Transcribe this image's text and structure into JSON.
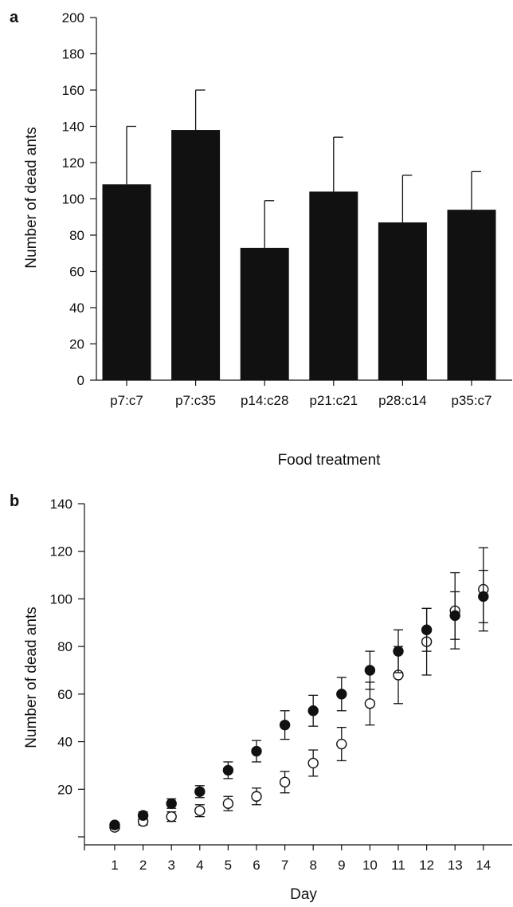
{
  "chart_data": [
    {
      "panel": "a",
      "type": "bar",
      "xlabel": "Food treatment",
      "ylabel": "Number of dead ants",
      "categories": [
        "p7:c7",
        "p7:c35",
        "p14:c28",
        "p21:c21",
        "p28:c14",
        "p35:c7"
      ],
      "values": [
        108,
        138,
        73,
        104,
        87,
        94
      ],
      "errors": [
        32,
        22,
        26,
        30,
        26,
        21
      ],
      "ylim": [
        0,
        200
      ],
      "yticks": [
        0,
        20,
        40,
        60,
        80,
        100,
        120,
        140,
        160,
        180,
        200
      ],
      "bar_color": "#111111",
      "grid": false
    },
    {
      "panel": "b",
      "type": "scatter",
      "xlabel": "Day",
      "ylabel": "Number of dead ants",
      "x": [
        1,
        2,
        3,
        4,
        5,
        6,
        7,
        8,
        9,
        10,
        11,
        12,
        13,
        14
      ],
      "xticks": [
        1,
        2,
        3,
        4,
        5,
        6,
        7,
        8,
        9,
        10,
        11,
        12,
        13,
        14
      ],
      "ylim": [
        0,
        140
      ],
      "yticks": [
        20,
        40,
        60,
        80,
        100,
        120,
        140
      ],
      "grid": false,
      "series": [
        {
          "marker": "filled-circle",
          "color": "#111111",
          "values": [
            5,
            9,
            14,
            19,
            28,
            36,
            47,
            53,
            60,
            70,
            78,
            87,
            93,
            101
          ],
          "errors": [
            1,
            1.5,
            2,
            2.5,
            3.5,
            4.5,
            6,
            6.5,
            7,
            8,
            9,
            9,
            10,
            11
          ]
        },
        {
          "marker": "open-circle",
          "color": "#111111",
          "values": [
            4,
            6.5,
            8.5,
            11,
            14,
            17,
            23,
            31,
            39,
            56,
            68,
            82,
            95,
            104
          ],
          "errors": [
            1,
            1.5,
            2,
            2.5,
            3,
            3.5,
            4.5,
            5.5,
            7,
            9,
            12,
            14,
            16,
            17.5
          ]
        }
      ]
    }
  ]
}
